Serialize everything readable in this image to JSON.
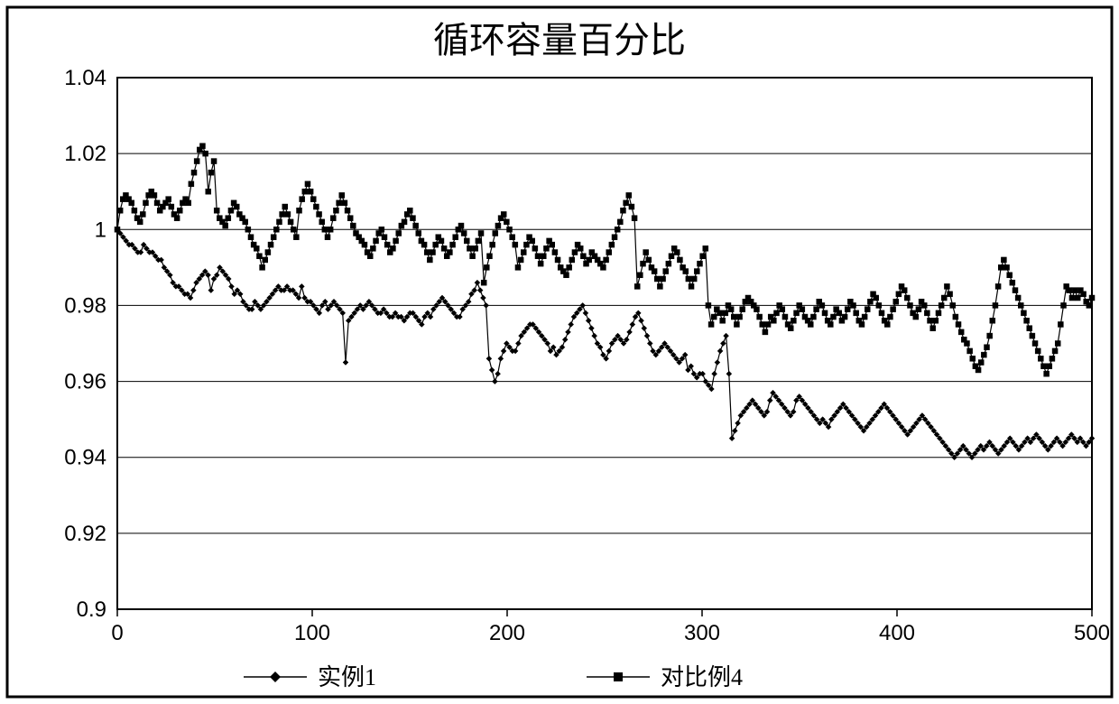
{
  "chart": {
    "type": "line",
    "title": "循环容量百分比",
    "title_fontsize": 40,
    "title_fontweight": "normal",
    "title_color": "#000000",
    "outer_border_color": "#000000",
    "outer_border_width": 3,
    "plot_border_color": "#000000",
    "plot_border_width": 2,
    "background_color": "#ffffff",
    "grid_color": "#000000",
    "grid_width": 1,
    "x": {
      "min": 0,
      "max": 500,
      "ticks": [
        0,
        100,
        200,
        300,
        400,
        500
      ],
      "tick_fontsize": 24,
      "tick_color": "#000000"
    },
    "y": {
      "min": 0.9,
      "max": 1.04,
      "ticks": [
        0.9,
        0.92,
        0.94,
        0.96,
        0.98,
        1.0,
        1.02,
        1.04
      ],
      "tick_labels": [
        "0.9",
        "0.92",
        "0.94",
        "0.96",
        "0.98",
        "1",
        "1.02",
        "1.04"
      ],
      "tick_fontsize": 24,
      "tick_color": "#000000"
    },
    "legend": {
      "position": "bottom",
      "fontsize": 26,
      "items": [
        {
          "label": "实例1",
          "marker": "diamond"
        },
        {
          "label": "对比例4",
          "marker": "square"
        }
      ]
    },
    "series": [
      {
        "name": "实例1",
        "marker": "diamond",
        "marker_size": 6,
        "line_width": 1.2,
        "color": "#000000",
        "y_values": [
          1.0,
          0.999,
          0.998,
          0.997,
          0.996,
          0.996,
          0.995,
          0.994,
          0.994,
          0.996,
          0.995,
          0.994,
          0.994,
          0.993,
          0.992,
          0.992,
          0.99,
          0.989,
          0.988,
          0.986,
          0.985,
          0.985,
          0.984,
          0.983,
          0.983,
          0.982,
          0.984,
          0.986,
          0.987,
          0.988,
          0.989,
          0.988,
          0.984,
          0.987,
          0.988,
          0.99,
          0.989,
          0.988,
          0.987,
          0.985,
          0.983,
          0.984,
          0.983,
          0.981,
          0.98,
          0.979,
          0.979,
          0.981,
          0.98,
          0.979,
          0.98,
          0.981,
          0.982,
          0.983,
          0.984,
          0.985,
          0.984,
          0.984,
          0.985,
          0.984,
          0.984,
          0.983,
          0.982,
          0.985,
          0.982,
          0.981,
          0.981,
          0.98,
          0.979,
          0.978,
          0.98,
          0.981,
          0.979,
          0.98,
          0.981,
          0.98,
          0.979,
          0.978,
          0.965,
          0.976,
          0.977,
          0.978,
          0.979,
          0.98,
          0.979,
          0.98,
          0.981,
          0.98,
          0.979,
          0.978,
          0.978,
          0.979,
          0.978,
          0.977,
          0.977,
          0.978,
          0.977,
          0.977,
          0.976,
          0.977,
          0.978,
          0.978,
          0.977,
          0.976,
          0.975,
          0.977,
          0.978,
          0.977,
          0.979,
          0.98,
          0.981,
          0.982,
          0.981,
          0.98,
          0.979,
          0.978,
          0.977,
          0.977,
          0.979,
          0.98,
          0.981,
          0.983,
          0.984,
          0.986,
          0.984,
          0.982,
          0.98,
          0.966,
          0.963,
          0.96,
          0.962,
          0.966,
          0.968,
          0.97,
          0.969,
          0.968,
          0.968,
          0.97,
          0.972,
          0.973,
          0.974,
          0.975,
          0.975,
          0.974,
          0.973,
          0.972,
          0.971,
          0.97,
          0.968,
          0.969,
          0.967,
          0.968,
          0.969,
          0.971,
          0.973,
          0.975,
          0.977,
          0.978,
          0.979,
          0.98,
          0.978,
          0.976,
          0.974,
          0.972,
          0.97,
          0.969,
          0.967,
          0.966,
          0.968,
          0.97,
          0.971,
          0.972,
          0.971,
          0.97,
          0.971,
          0.973,
          0.975,
          0.977,
          0.978,
          0.976,
          0.974,
          0.972,
          0.97,
          0.968,
          0.967,
          0.968,
          0.969,
          0.97,
          0.969,
          0.968,
          0.967,
          0.966,
          0.965,
          0.966,
          0.967,
          0.963,
          0.964,
          0.962,
          0.961,
          0.962,
          0.962,
          0.96,
          0.959,
          0.958,
          0.962,
          0.965,
          0.968,
          0.97,
          0.972,
          0.962,
          0.945,
          0.947,
          0.949,
          0.951,
          0.952,
          0.953,
          0.954,
          0.955,
          0.954,
          0.953,
          0.952,
          0.951,
          0.952,
          0.955,
          0.957,
          0.956,
          0.955,
          0.954,
          0.953,
          0.952,
          0.951,
          0.952,
          0.955,
          0.956,
          0.955,
          0.954,
          0.953,
          0.952,
          0.951,
          0.95,
          0.949,
          0.95,
          0.949,
          0.948,
          0.95,
          0.951,
          0.952,
          0.953,
          0.954,
          0.953,
          0.952,
          0.951,
          0.95,
          0.949,
          0.948,
          0.947,
          0.948,
          0.949,
          0.95,
          0.951,
          0.952,
          0.953,
          0.954,
          0.953,
          0.952,
          0.951,
          0.95,
          0.949,
          0.948,
          0.947,
          0.946,
          0.947,
          0.948,
          0.949,
          0.95,
          0.951,
          0.95,
          0.949,
          0.948,
          0.947,
          0.946,
          0.945,
          0.944,
          0.943,
          0.942,
          0.941,
          0.94,
          0.941,
          0.942,
          0.943,
          0.942,
          0.941,
          0.94,
          0.941,
          0.942,
          0.943,
          0.942,
          0.943,
          0.944,
          0.943,
          0.942,
          0.941,
          0.942,
          0.943,
          0.944,
          0.945,
          0.944,
          0.943,
          0.942,
          0.943,
          0.944,
          0.945,
          0.944,
          0.945,
          0.946,
          0.945,
          0.944,
          0.943,
          0.942,
          0.943,
          0.944,
          0.945,
          0.944,
          0.943,
          0.944,
          0.945,
          0.946,
          0.945,
          0.944,
          0.945,
          0.944,
          0.943,
          0.944,
          0.945
        ]
      },
      {
        "name": "对比例4",
        "marker": "square",
        "marker_size": 6,
        "line_width": 1.2,
        "color": "#000000",
        "y_values": [
          1.0,
          1.005,
          1.008,
          1.009,
          1.008,
          1.007,
          1.005,
          1.003,
          1.002,
          1.004,
          1.007,
          1.009,
          1.01,
          1.009,
          1.007,
          1.005,
          1.006,
          1.007,
          1.008,
          1.006,
          1.004,
          1.003,
          1.005,
          1.007,
          1.008,
          1.007,
          1.012,
          1.015,
          1.018,
          1.021,
          1.022,
          1.02,
          1.01,
          1.015,
          1.018,
          1.005,
          1.003,
          1.002,
          1.001,
          1.003,
          1.005,
          1.007,
          1.006,
          1.004,
          1.003,
          1.002,
          1.0,
          0.998,
          0.996,
          0.995,
          0.993,
          0.99,
          0.992,
          0.994,
          0.996,
          0.998,
          1.0,
          1.002,
          1.004,
          1.006,
          1.004,
          1.002,
          1.0,
          0.998,
          1.005,
          1.008,
          1.01,
          1.012,
          1.01,
          1.008,
          1.006,
          1.004,
          1.002,
          1.0,
          0.998,
          1.0,
          1.003,
          1.005,
          1.007,
          1.009,
          1.007,
          1.005,
          1.003,
          1.001,
          0.999,
          0.998,
          0.997,
          0.996,
          0.994,
          0.993,
          0.995,
          0.997,
          0.999,
          1.0,
          0.998,
          0.996,
          0.994,
          0.995,
          0.997,
          0.999,
          1.001,
          1.002,
          1.004,
          1.005,
          1.003,
          1.001,
          0.999,
          0.997,
          0.996,
          0.994,
          0.992,
          0.994,
          0.996,
          0.998,
          0.997,
          0.995,
          0.993,
          0.994,
          0.996,
          0.998,
          1.0,
          1.001,
          0.999,
          0.997,
          0.995,
          0.993,
          0.995,
          0.997,
          0.999,
          0.986,
          0.99,
          0.993,
          0.996,
          0.999,
          1.001,
          1.003,
          1.004,
          1.002,
          1.0,
          0.998,
          0.996,
          0.99,
          0.992,
          0.994,
          0.996,
          0.998,
          0.997,
          0.995,
          0.993,
          0.991,
          0.993,
          0.995,
          0.997,
          0.996,
          0.994,
          0.992,
          0.99,
          0.989,
          0.988,
          0.99,
          0.992,
          0.994,
          0.996,
          0.995,
          0.993,
          0.991,
          0.992,
          0.994,
          0.993,
          0.992,
          0.991,
          0.99,
          0.992,
          0.994,
          0.996,
          0.998,
          1.0,
          1.002,
          1.005,
          1.007,
          1.009,
          1.006,
          1.003,
          0.985,
          0.988,
          0.991,
          0.994,
          0.992,
          0.99,
          0.989,
          0.987,
          0.985,
          0.987,
          0.989,
          0.991,
          0.993,
          0.995,
          0.994,
          0.992,
          0.99,
          0.989,
          0.987,
          0.985,
          0.987,
          0.989,
          0.991,
          0.993,
          0.995,
          0.98,
          0.975,
          0.977,
          0.979,
          0.978,
          0.976,
          0.978,
          0.98,
          0.979,
          0.977,
          0.975,
          0.977,
          0.979,
          0.981,
          0.982,
          0.981,
          0.98,
          0.979,
          0.977,
          0.975,
          0.973,
          0.975,
          0.977,
          0.976,
          0.978,
          0.98,
          0.979,
          0.977,
          0.975,
          0.974,
          0.976,
          0.978,
          0.98,
          0.979,
          0.977,
          0.976,
          0.975,
          0.977,
          0.979,
          0.981,
          0.98,
          0.978,
          0.976,
          0.975,
          0.977,
          0.979,
          0.978,
          0.976,
          0.977,
          0.979,
          0.981,
          0.98,
          0.978,
          0.976,
          0.975,
          0.977,
          0.979,
          0.981,
          0.983,
          0.982,
          0.98,
          0.978,
          0.976,
          0.975,
          0.977,
          0.979,
          0.981,
          0.983,
          0.985,
          0.984,
          0.982,
          0.98,
          0.978,
          0.977,
          0.979,
          0.981,
          0.98,
          0.978,
          0.976,
          0.974,
          0.976,
          0.978,
          0.98,
          0.982,
          0.985,
          0.983,
          0.98,
          0.977,
          0.975,
          0.973,
          0.971,
          0.97,
          0.968,
          0.966,
          0.964,
          0.963,
          0.965,
          0.967,
          0.969,
          0.972,
          0.976,
          0.98,
          0.985,
          0.99,
          0.992,
          0.99,
          0.988,
          0.986,
          0.984,
          0.982,
          0.98,
          0.978,
          0.976,
          0.974,
          0.972,
          0.97,
          0.968,
          0.966,
          0.964,
          0.962,
          0.964,
          0.966,
          0.968,
          0.97,
          0.975,
          0.98,
          0.985,
          0.984,
          0.982,
          0.984,
          0.982,
          0.984,
          0.983,
          0.981,
          0.98,
          0.982
        ]
      }
    ]
  }
}
